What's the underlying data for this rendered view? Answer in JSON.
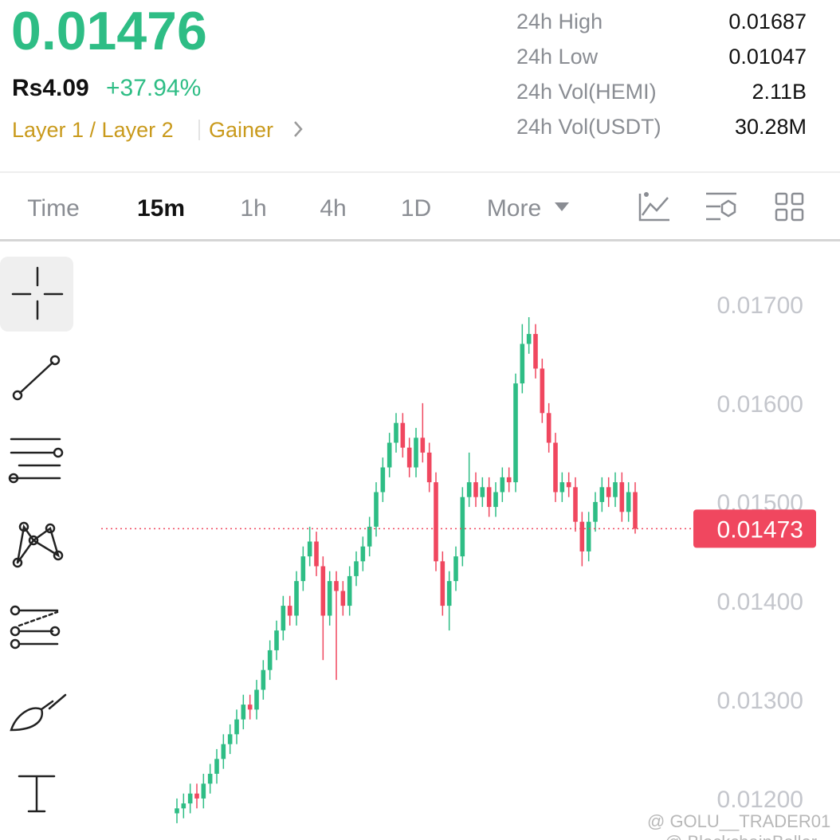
{
  "header": {
    "price": "0.01476",
    "fiat": "Rs4.09",
    "change": "+37.94%",
    "tags": [
      "Layer 1 / Layer 2",
      "Gainer"
    ]
  },
  "stats": [
    {
      "label": "24h High",
      "value": "0.01687"
    },
    {
      "label": "24h Low",
      "value": "0.01047"
    },
    {
      "label": "24h Vol(HEMI)",
      "value": "2.11B"
    },
    {
      "label": "24h Vol(USDT)",
      "value": "30.28M"
    }
  ],
  "tabs": [
    "Time",
    "15m",
    "1h",
    "4h",
    "1D",
    "More"
  ],
  "active_tab_index": 1,
  "watermark": [
    "@ GOLU__TRADER01",
    "@ BlockchainBaller"
  ],
  "chart_data": {
    "type": "candlestick",
    "open": [
      0.01185,
      0.0119,
      0.01195,
      0.01205,
      0.012,
      0.01215,
      0.01225,
      0.0124,
      0.01255,
      0.01265,
      0.0128,
      0.01295,
      0.0129,
      0.0131,
      0.0133,
      0.0135,
      0.0137,
      0.01395,
      0.01385,
      0.0142,
      0.01445,
      0.0146,
      0.01435,
      0.01385,
      0.0142,
      0.0141,
      0.01395,
      0.01425,
      0.0144,
      0.01455,
      0.01475,
      0.0151,
      0.01535,
      0.0156,
      0.0158,
      0.01555,
      0.01535,
      0.01565,
      0.0155,
      0.0152,
      0.0144,
      0.01395,
      0.0142,
      0.01445,
      0.01505,
      0.0152,
      0.01505,
      0.01515,
      0.01495,
      0.0151,
      0.01525,
      0.0152,
      0.0162,
      0.0166,
      0.0167,
      0.01635,
      0.0159,
      0.0156,
      0.0151,
      0.0152,
      0.01515,
      0.0148,
      0.0145,
      0.0148,
      0.015,
      0.01515,
      0.01505,
      0.0152,
      0.0149,
      0.0151
    ],
    "high": [
      0.012,
      0.01205,
      0.01215,
      0.01215,
      0.01225,
      0.01235,
      0.0125,
      0.01265,
      0.01275,
      0.0129,
      0.01305,
      0.01305,
      0.0132,
      0.0134,
      0.0136,
      0.0138,
      0.01405,
      0.01405,
      0.0143,
      0.01455,
      0.01475,
      0.0147,
      0.01445,
      0.0143,
      0.0143,
      0.0142,
      0.01435,
      0.0145,
      0.01465,
      0.01485,
      0.0152,
      0.01545,
      0.0157,
      0.0159,
      0.0159,
      0.01565,
      0.01575,
      0.016,
      0.0156,
      0.0153,
      0.0145,
      0.0143,
      0.01455,
      0.01515,
      0.0155,
      0.0153,
      0.01525,
      0.01525,
      0.0152,
      0.01535,
      0.01535,
      0.0163,
      0.0168,
      0.01687,
      0.0168,
      0.01645,
      0.016,
      0.0157,
      0.0153,
      0.0153,
      0.01525,
      0.0149,
      0.0149,
      0.0151,
      0.01525,
      0.01525,
      0.0153,
      0.0153,
      0.0152,
      0.0152
    ],
    "low": [
      0.01175,
      0.0118,
      0.01185,
      0.0119,
      0.0119,
      0.01205,
      0.01215,
      0.0123,
      0.01245,
      0.01255,
      0.0127,
      0.0128,
      0.0128,
      0.013,
      0.0132,
      0.0134,
      0.0136,
      0.01375,
      0.01375,
      0.0141,
      0.01435,
      0.01425,
      0.0134,
      0.01375,
      0.0132,
      0.01385,
      0.01385,
      0.01415,
      0.0143,
      0.01445,
      0.01465,
      0.015,
      0.01525,
      0.0155,
      0.01545,
      0.01525,
      0.01525,
      0.0154,
      0.0151,
      0.0143,
      0.01385,
      0.0137,
      0.0141,
      0.01435,
      0.01495,
      0.01495,
      0.01495,
      0.01485,
      0.01485,
      0.015,
      0.0151,
      0.0151,
      0.0161,
      0.0165,
      0.01625,
      0.0158,
      0.0155,
      0.015,
      0.015,
      0.01505,
      0.0147,
      0.01435,
      0.0144,
      0.0147,
      0.0149,
      0.01495,
      0.01495,
      0.0148,
      0.0148,
      0.01468
    ],
    "close": [
      0.0119,
      0.01195,
      0.01205,
      0.012,
      0.01215,
      0.01225,
      0.0124,
      0.01255,
      0.01265,
      0.0128,
      0.01295,
      0.0129,
      0.0131,
      0.0133,
      0.0135,
      0.0137,
      0.01395,
      0.01385,
      0.0142,
      0.01445,
      0.0146,
      0.01435,
      0.01385,
      0.0142,
      0.0141,
      0.01395,
      0.01425,
      0.0144,
      0.01455,
      0.01475,
      0.0151,
      0.01535,
      0.0156,
      0.0158,
      0.01555,
      0.01535,
      0.01565,
      0.0155,
      0.0152,
      0.0144,
      0.01395,
      0.0142,
      0.01445,
      0.01505,
      0.0152,
      0.01505,
      0.01515,
      0.01495,
      0.0151,
      0.01525,
      0.0152,
      0.0162,
      0.0166,
      0.0167,
      0.01635,
      0.0159,
      0.0156,
      0.0151,
      0.0152,
      0.01515,
      0.0148,
      0.0145,
      0.0148,
      0.015,
      0.01515,
      0.01505,
      0.0152,
      0.0149,
      0.0151,
      0.01473
    ],
    "ylim": [
      0.01158,
      0.01762
    ],
    "yticks": [
      {
        "value": 0.012,
        "label": "0.01200"
      },
      {
        "value": 0.013,
        "label": "0.01300"
      },
      {
        "value": 0.014,
        "label": "0.01400"
      },
      {
        "value": 0.015,
        "label": "0.01500"
      },
      {
        "value": 0.016,
        "label": "0.01600"
      },
      {
        "value": 0.017,
        "label": "0.01700"
      }
    ],
    "current_price": 0.01473,
    "up_color": "#2ebd85",
    "down_color": "#f0475f"
  }
}
